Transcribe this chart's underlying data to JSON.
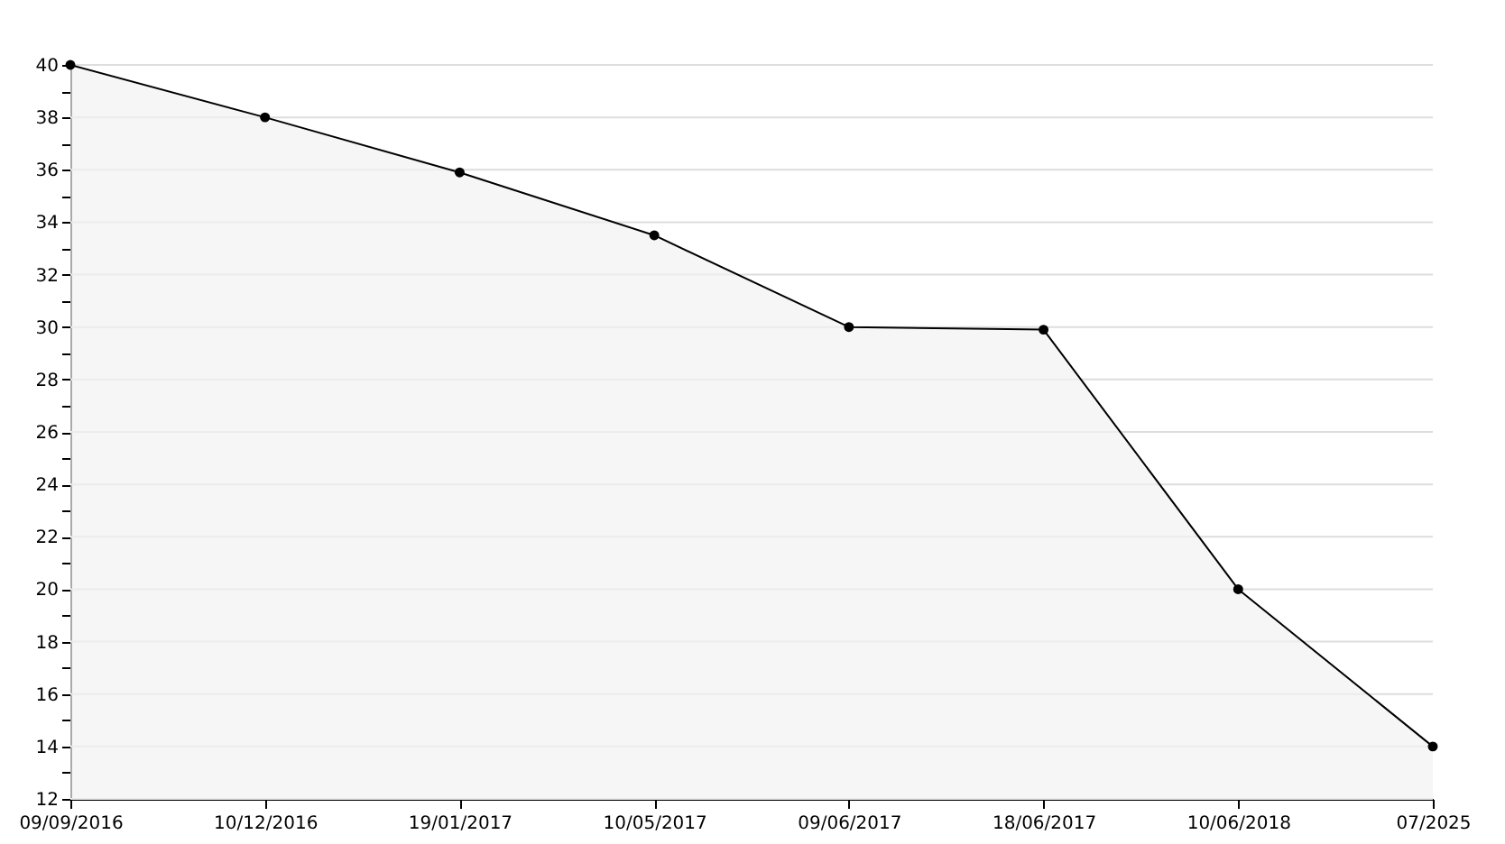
{
  "chart_data": {
    "type": "area",
    "categories": [
      "09/09/2016",
      "10/12/2016",
      "19/01/2017",
      "10/05/2017",
      "09/06/2017",
      "18/06/2017",
      "10/06/2018",
      "07/2025"
    ],
    "series": [
      {
        "color": "#000000",
        "values": [
          40,
          38,
          35.9,
          33.5,
          30,
          29.9,
          20,
          14
        ]
      }
    ],
    "ylim": [
      12,
      40
    ],
    "yticks": [
      12,
      {
        "value": 13,
        "label": null
      },
      14,
      {
        "value": 15,
        "label": null
      },
      16,
      {
        "value": 17,
        "label": null
      },
      18,
      {
        "value": 19,
        "label": null
      },
      20,
      {
        "value": 21,
        "label": null
      },
      22,
      {
        "value": 23,
        "label": null
      },
      24,
      {
        "value": 25,
        "label": null
      },
      26,
      {
        "value": 27,
        "label": null
      },
      28,
      {
        "value": 29,
        "label": null
      },
      30,
      {
        "value": 31,
        "label": null
      },
      32,
      {
        "value": 33,
        "label": null
      },
      34,
      {
        "value": 35,
        "label": null
      },
      36,
      {
        "value": 37,
        "label": null
      },
      38,
      {
        "value": 39,
        "label": null
      },
      40
    ],
    "grid": "y",
    "marker": "circle"
  }
}
